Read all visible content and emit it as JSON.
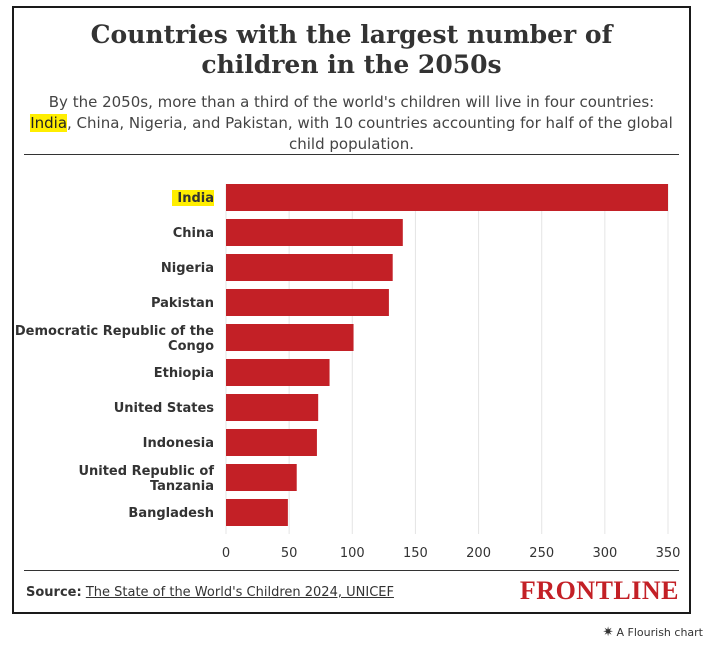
{
  "title": "Countries with the largest number of children in the 2050s",
  "subtitle": {
    "before": "By the 2050s, more than a third of the world's children will live in four countries: ",
    "highlight": "India",
    "after": ", China, Nigeria, and Pakistan, with 10 countries accounting for half of the global child population."
  },
  "source": {
    "label": "Source:",
    "link_text": "The State of the World's Children 2024, UNICEF"
  },
  "brand": "FRONTLINE",
  "flourish_credit": "A Flourish chart",
  "colors": {
    "bar": "#c32026",
    "highlight": "#ffee00",
    "brand": "#c32026"
  },
  "chart_data": {
    "type": "bar",
    "orientation": "horizontal",
    "categories": [
      "India",
      "China",
      "Nigeria",
      "Pakistan",
      "Democratic Republic of the Congo",
      "Ethiopia",
      "United States",
      "Indonesia",
      "United Republic of Tanzania",
      "Bangladesh"
    ],
    "highlighted_category": "India",
    "values": [
      350,
      140,
      132,
      129,
      101,
      82,
      73,
      72,
      56,
      49
    ],
    "xlim": [
      0,
      350
    ],
    "xticks": [
      0,
      50,
      100,
      150,
      200,
      250,
      300,
      350
    ],
    "grid": true
  }
}
